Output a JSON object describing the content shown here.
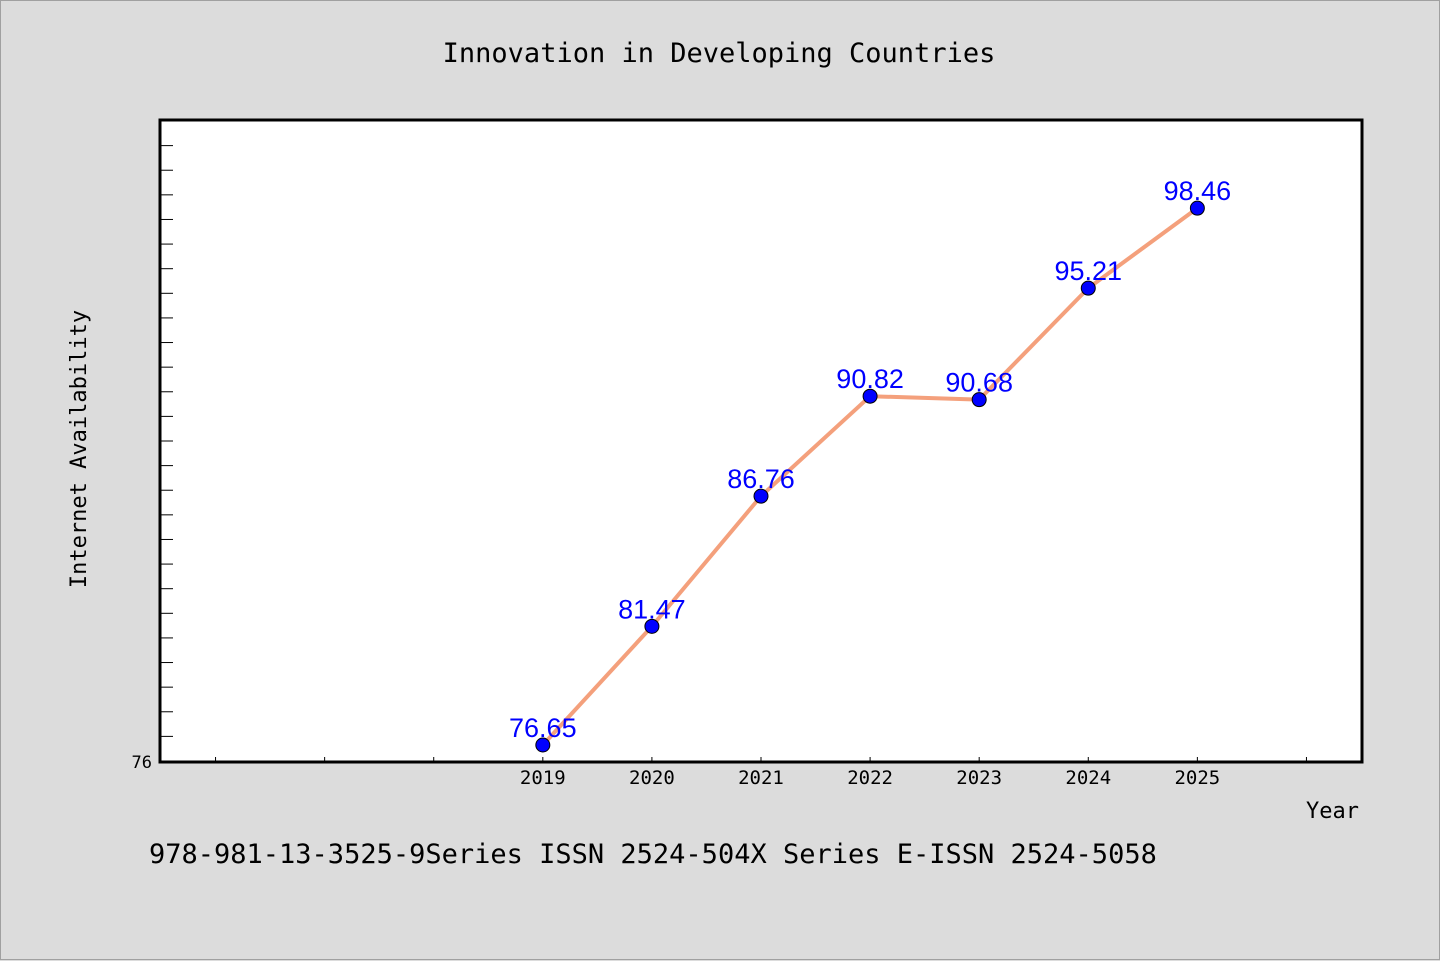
{
  "chart_data": {
    "type": "line",
    "title": "Innovation in Developing Countries",
    "xlabel": "Year",
    "ylabel": "Internet Availability",
    "x": [
      "2019",
      "2020",
      "2021",
      "2022",
      "2023",
      "2024",
      "2025"
    ],
    "series": [
      {
        "values": [
          76.65,
          81.47,
          86.76,
          90.82,
          90.68,
          95.21,
          98.46
        ]
      }
    ],
    "data_labels": [
      "76.65",
      "81.47",
      "86.76",
      "90.82",
      "90.68",
      "95.21",
      "98.46"
    ],
    "y_tick_labels": [
      "76"
    ],
    "ylim": [
      76,
      102
    ],
    "xlim": [
      2015.5,
      2026.5
    ],
    "line_color": "#f4a07c",
    "marker_color": "#0000ff",
    "label_color": "#0000ff",
    "grid": false,
    "legend": "none"
  },
  "footer": {
    "text": "978-981-13-3525-9Series ISSN 2524-504X Series E-ISSN 2524-5058"
  }
}
